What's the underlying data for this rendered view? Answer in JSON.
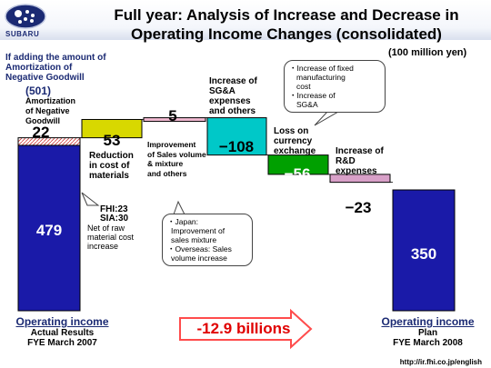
{
  "brand": {
    "name": "SUBARU"
  },
  "title": {
    "line1": "Full year: Analysis of Increase and Decrease in",
    "line2": "Operating Income Changes (consolidated)"
  },
  "unit": "(100 million yen)",
  "chart_data": {
    "type": "waterfall",
    "bars": [
      {
        "label": "Operating income Actual Results FYE March 2007",
        "value": 479,
        "display": "479",
        "kind": "total"
      },
      {
        "label": "Amortization of Negative Goodwill",
        "value": 22,
        "display": "22",
        "kind": "total-add"
      },
      {
        "label": "Reduction in cost of materials",
        "value": 53,
        "display": "53",
        "kind": "delta"
      },
      {
        "label": "Improvement of Sales volume & mixture and others",
        "value": 5,
        "display": "5",
        "kind": "delta"
      },
      {
        "label": "Increase of SG&A expenses and others",
        "value": -108,
        "display": "−108",
        "kind": "delta"
      },
      {
        "label": "Loss on currency exchange",
        "value": -56,
        "display": "−56",
        "kind": "delta"
      },
      {
        "label": "Increase of R&D expenses",
        "value": -23,
        "display": "−23",
        "kind": "delta"
      },
      {
        "label": "Operating income Plan FYE March 2008",
        "value": 350,
        "display": "350",
        "kind": "total"
      }
    ],
    "colors": {
      "total": "#1a1aa8",
      "materials": "#d8d800",
      "sales": "#f0b8d0",
      "sga": "#00c8c8",
      "currency": "#00a000",
      "rnd": "#d8a0c8",
      "goodwill": "#ffffff"
    }
  },
  "labels": {
    "goodwill_note_1": "If adding the amount of",
    "goodwill_note_2": "Amortization of",
    "goodwill_note_3": "Negative Goodwill",
    "goodwill_amount": "(501)",
    "amort_1": "Amortization",
    "amort_2": "of Negative",
    "amort_3": "Goodwill",
    "materials_1": "Reduction",
    "materials_2": "in cost of",
    "materials_3": "materials",
    "fhi": "FHI:23",
    "sia": "SIA:30",
    "net_1": "Net of raw",
    "net_2": "material cost",
    "net_3": "increase",
    "sales_1": "Improvement",
    "sales_2": "of Sales volume",
    "sales_3": "& mixture",
    "sales_4": "and others",
    "sga_1": "Increase of",
    "sga_2": "SG&A",
    "sga_3": "expenses",
    "sga_4": "and others",
    "fx_1": "Loss on",
    "fx_2": "currency",
    "fx_3": "exchange",
    "rnd_1": "Increase of",
    "rnd_2": "R&D",
    "rnd_3": "expenses",
    "sga_callout_1": "・Increase of fixed",
    "sga_callout_2": "manufacturing",
    "sga_callout_3": "cost",
    "sga_callout_4": "・Increase of",
    "sga_callout_5": "SG&A",
    "sales_callout_1": "・Japan:",
    "sales_callout_2": "Improvement of",
    "sales_callout_3": "sales mixture",
    "sales_callout_4": "・Overseas: Sales",
    "sales_callout_5": "volume increase",
    "left_foot_1": "Operating income",
    "left_foot_2": "Actual Results",
    "left_foot_3": "FYE March 2007",
    "right_foot_1": "Operating income",
    "right_foot_2": "Plan",
    "right_foot_3": "FYE March 2008",
    "change": "-12.9 billions",
    "url": "http://ir.fhi.co.jp/english"
  }
}
